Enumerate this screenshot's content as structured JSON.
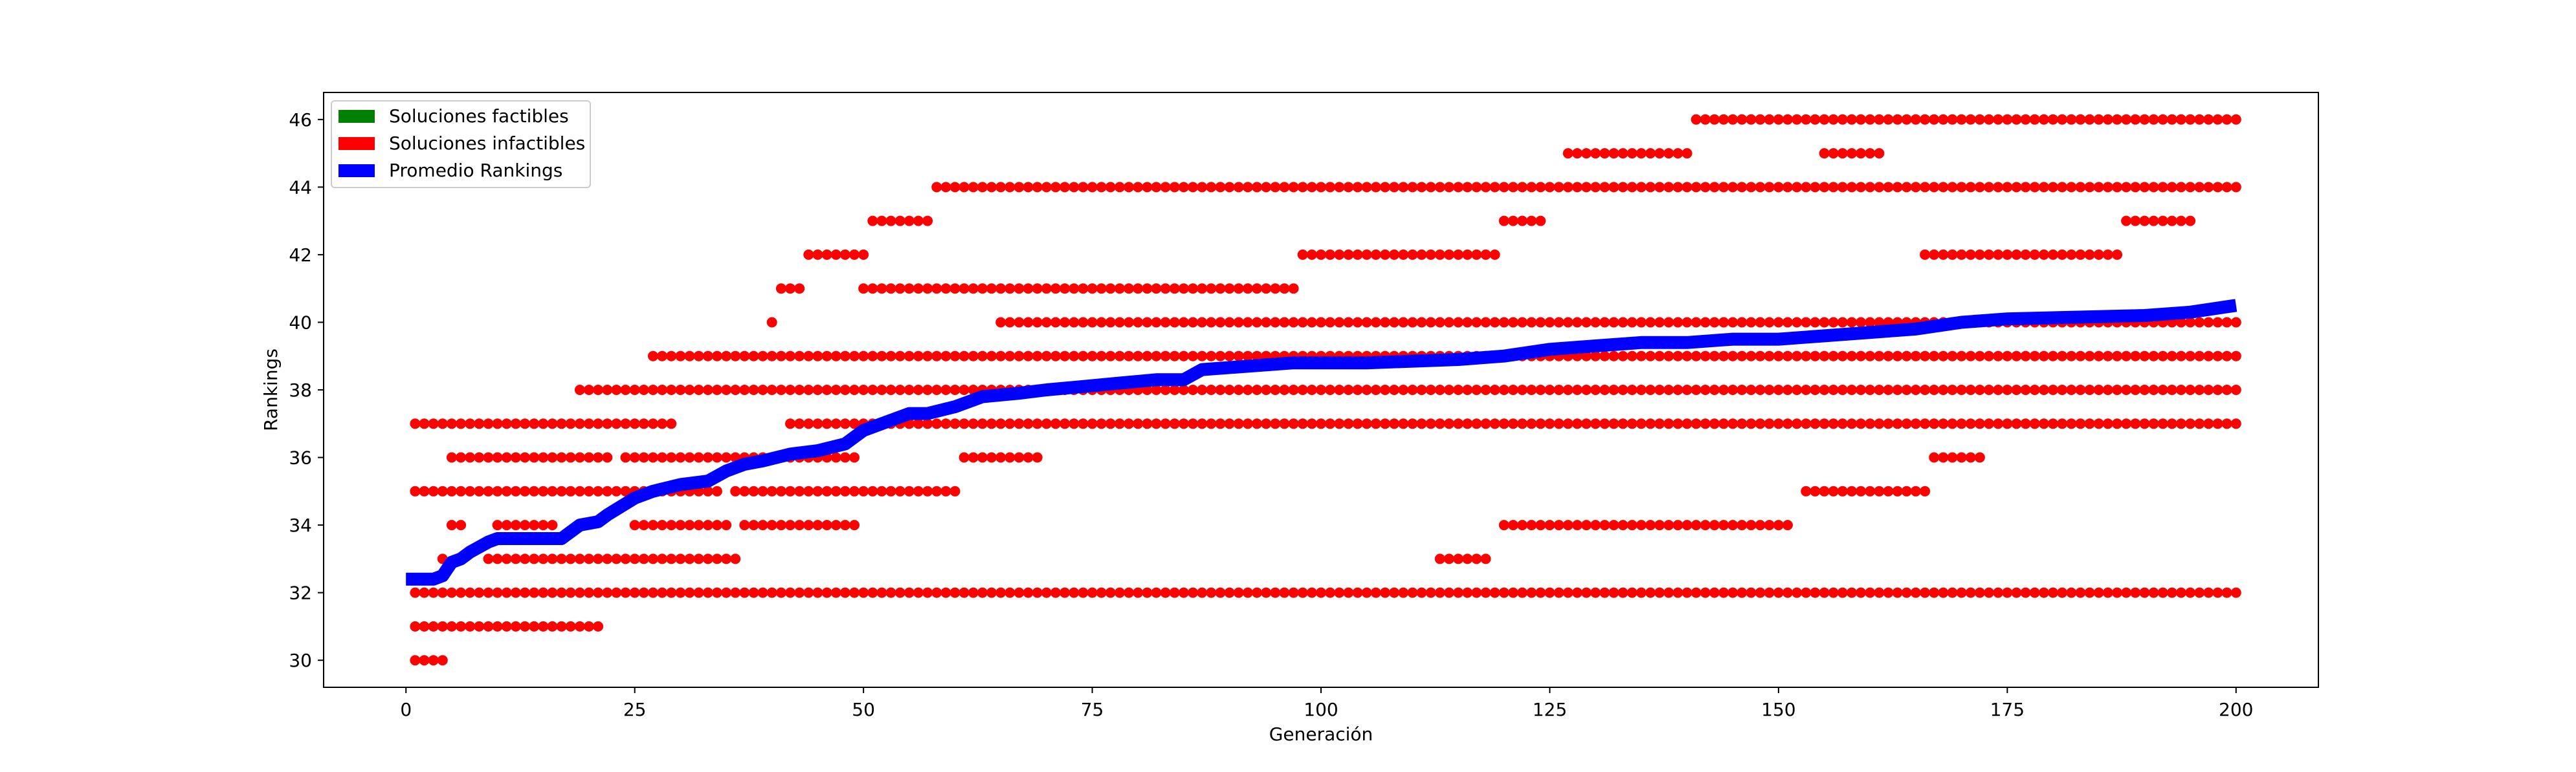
{
  "chart_data": {
    "type": "scatter",
    "title": "",
    "xlabel": "Generación",
    "ylabel": "Rankings",
    "xlim": [
      -9,
      209
    ],
    "ylim": [
      29.2,
      46.8
    ],
    "x_ticks": [
      0,
      25,
      50,
      75,
      100,
      125,
      150,
      175,
      200
    ],
    "y_ticks": [
      30,
      32,
      34,
      36,
      38,
      40,
      42,
      44,
      46
    ],
    "grid": false,
    "legend_position": "upper left",
    "colors": {
      "feasible": "#008000",
      "infeasible": "#ff0000",
      "average": "#0000ff"
    },
    "legend": [
      {
        "label": "Soluciones factibles",
        "color": "#008000"
      },
      {
        "label": "Soluciones infactibles",
        "color": "#ff0000"
      },
      {
        "label": "Promedio Rankings",
        "color": "#0000ff"
      }
    ],
    "series": [
      {
        "name": "Soluciones factibles",
        "kind": "points",
        "color": "#008000",
        "segments": []
      },
      {
        "name": "Soluciones infactibles",
        "kind": "points",
        "color": "#ff0000",
        "segments": [
          {
            "y": 30,
            "x_start": 1,
            "x_end": 4
          },
          {
            "y": 31,
            "x_start": 1,
            "x_end": 21
          },
          {
            "y": 32,
            "x_start": 1,
            "x_end": 200
          },
          {
            "y": 33,
            "x_start": 4,
            "x_end": 4
          },
          {
            "y": 33,
            "x_start": 9,
            "x_end": 36
          },
          {
            "y": 33,
            "x_start": 113,
            "x_end": 118
          },
          {
            "y": 34,
            "x_start": 5,
            "x_end": 6
          },
          {
            "y": 34,
            "x_start": 10,
            "x_end": 16
          },
          {
            "y": 34,
            "x_start": 25,
            "x_end": 35
          },
          {
            "y": 34,
            "x_start": 37,
            "x_end": 49
          },
          {
            "y": 34,
            "x_start": 120,
            "x_end": 151
          },
          {
            "y": 35,
            "x_start": 1,
            "x_end": 34
          },
          {
            "y": 35,
            "x_start": 36,
            "x_end": 60
          },
          {
            "y": 35,
            "x_start": 153,
            "x_end": 166
          },
          {
            "y": 36,
            "x_start": 5,
            "x_end": 22
          },
          {
            "y": 36,
            "x_start": 24,
            "x_end": 49
          },
          {
            "y": 36,
            "x_start": 61,
            "x_end": 69
          },
          {
            "y": 36,
            "x_start": 167,
            "x_end": 172
          },
          {
            "y": 37,
            "x_start": 1,
            "x_end": 29
          },
          {
            "y": 37,
            "x_start": 42,
            "x_end": 200
          },
          {
            "y": 38,
            "x_start": 19,
            "x_end": 200
          },
          {
            "y": 39,
            "x_start": 27,
            "x_end": 200
          },
          {
            "y": 40,
            "x_start": 40,
            "x_end": 40
          },
          {
            "y": 40,
            "x_start": 65,
            "x_end": 200
          },
          {
            "y": 41,
            "x_start": 41,
            "x_end": 43
          },
          {
            "y": 41,
            "x_start": 50,
            "x_end": 97
          },
          {
            "y": 42,
            "x_start": 44,
            "x_end": 50
          },
          {
            "y": 42,
            "x_start": 98,
            "x_end": 119
          },
          {
            "y": 42,
            "x_start": 166,
            "x_end": 187
          },
          {
            "y": 43,
            "x_start": 51,
            "x_end": 57
          },
          {
            "y": 43,
            "x_start": 120,
            "x_end": 124
          },
          {
            "y": 43,
            "x_start": 188,
            "x_end": 195
          },
          {
            "y": 44,
            "x_start": 58,
            "x_end": 200
          },
          {
            "y": 45,
            "x_start": 127,
            "x_end": 140
          },
          {
            "y": 45,
            "x_start": 155,
            "x_end": 161
          },
          {
            "y": 46,
            "x_start": 141,
            "x_end": 200
          }
        ]
      },
      {
        "name": "Promedio Rankings",
        "kind": "line",
        "color": "#0000ff",
        "x": [
          0,
          3,
          4,
          5,
          6,
          7,
          9,
          10,
          17,
          19,
          21,
          22,
          25,
          27,
          30,
          33,
          35,
          37,
          39,
          42,
          45,
          48,
          50,
          52,
          55,
          57,
          60,
          63,
          67,
          70,
          74,
          78,
          82,
          85,
          87,
          92,
          97,
          105,
          115,
          120,
          125,
          130,
          135,
          140,
          145,
          150,
          155,
          160,
          165,
          170,
          175,
          190,
          195,
          200
        ],
        "y": [
          32.4,
          32.4,
          32.5,
          32.9,
          33.0,
          33.2,
          33.5,
          33.6,
          33.6,
          34.0,
          34.1,
          34.3,
          34.8,
          35.0,
          35.2,
          35.3,
          35.6,
          35.8,
          35.9,
          36.1,
          36.2,
          36.4,
          36.8,
          37.0,
          37.3,
          37.3,
          37.5,
          37.8,
          37.9,
          38.0,
          38.1,
          38.2,
          38.3,
          38.3,
          38.6,
          38.7,
          38.8,
          38.8,
          38.9,
          39.0,
          39.2,
          39.3,
          39.4,
          39.4,
          39.5,
          39.5,
          39.6,
          39.7,
          39.8,
          40.0,
          40.1,
          40.2,
          40.3,
          40.5
        ]
      }
    ]
  }
}
